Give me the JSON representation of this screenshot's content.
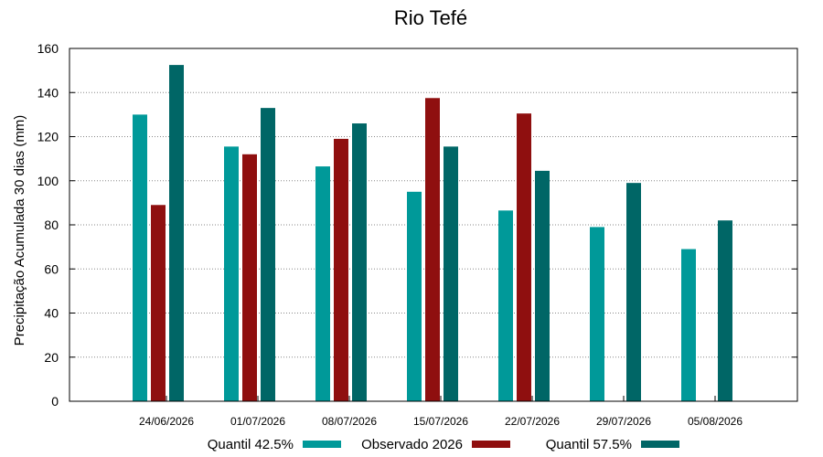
{
  "chart_data": {
    "type": "bar",
    "title": "Rio Tefé",
    "xlabel": "",
    "ylabel": "Precipitação Acumulada 30 dias (mm)",
    "ylim": [
      0,
      160
    ],
    "yticks": [
      0,
      20,
      40,
      60,
      80,
      100,
      120,
      140,
      160
    ],
    "grid": true,
    "legend_position": "bottom",
    "categories": [
      "24/06/2026",
      "01/07/2026",
      "08/07/2026",
      "15/07/2026",
      "22/07/2026",
      "29/07/2026",
      "05/08/2026"
    ],
    "series": [
      {
        "name": "Quantil 42.5%",
        "color": "#009999",
        "values": [
          130,
          115.5,
          106.5,
          95,
          86.5,
          79,
          69
        ]
      },
      {
        "name": "Observado 2026",
        "color": "#8f0f0f",
        "values": [
          89,
          112,
          119,
          137.5,
          130.5,
          null,
          null
        ]
      },
      {
        "name": "Quantil 57.5%",
        "color": "#006666",
        "values": [
          152.5,
          133,
          126,
          115.5,
          104.5,
          99,
          82
        ]
      }
    ]
  }
}
